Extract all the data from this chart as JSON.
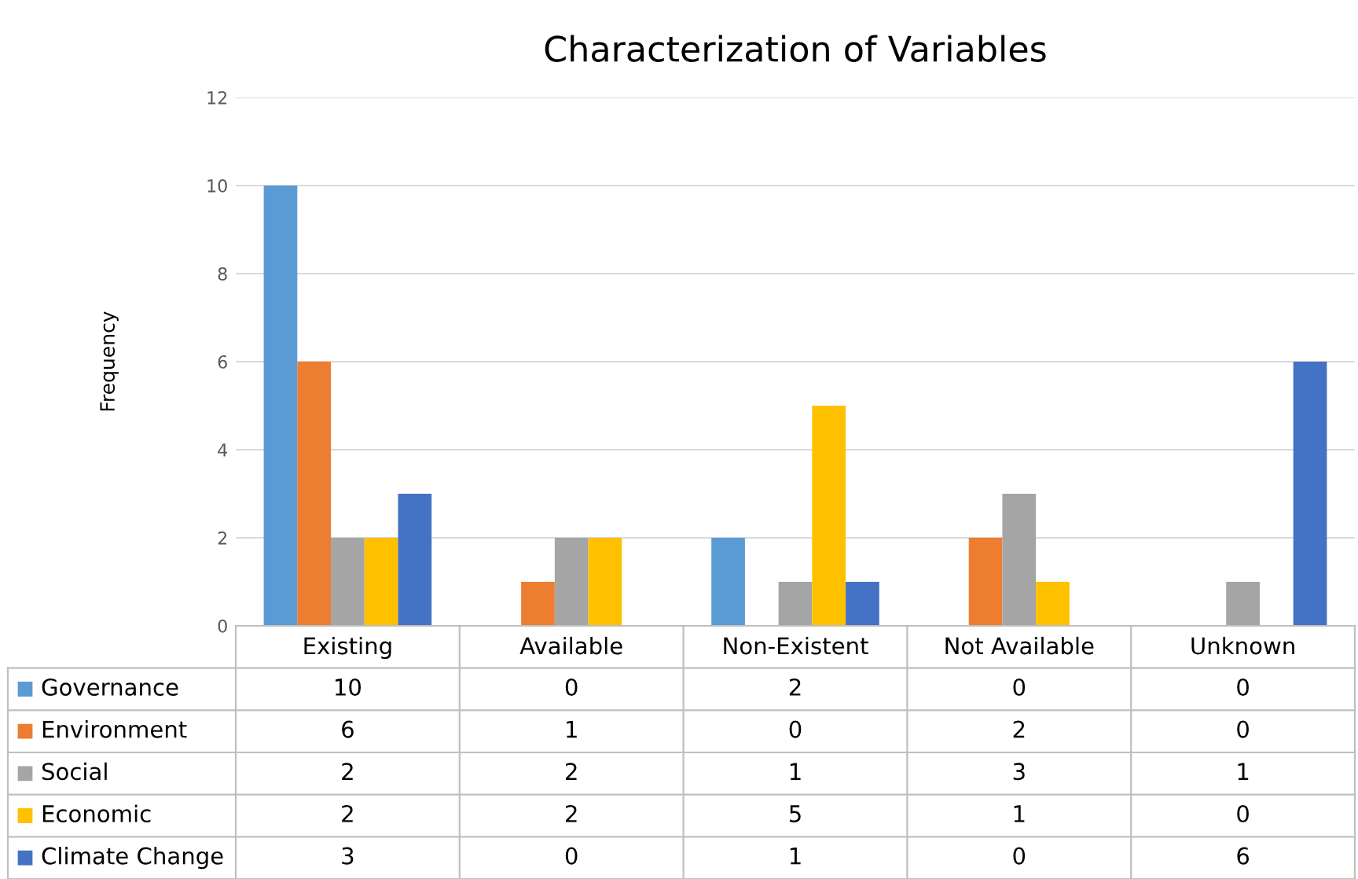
{
  "chart_data": {
    "type": "bar",
    "title": "Characterization of Variables",
    "ylabel": "Frequency",
    "categories": [
      "Existing",
      "Available",
      "Non-Existent",
      "Not Available",
      "Unknown"
    ],
    "series": [
      {
        "name": "Governance",
        "color": "#5b9bd5",
        "values": [
          10,
          0,
          2,
          0,
          0
        ]
      },
      {
        "name": "Environment",
        "color": "#ed7d31",
        "values": [
          6,
          1,
          0,
          2,
          0
        ]
      },
      {
        "name": "Social",
        "color": "#a5a5a5",
        "values": [
          2,
          2,
          1,
          3,
          1
        ]
      },
      {
        "name": "Economic",
        "color": "#ffc000",
        "values": [
          2,
          2,
          5,
          1,
          0
        ]
      },
      {
        "name": "Climate Change",
        "color": "#4472c4",
        "values": [
          3,
          0,
          1,
          0,
          6
        ]
      }
    ],
    "ylim": [
      0,
      12
    ],
    "yticks": [
      0,
      2,
      4,
      6,
      8,
      10,
      12
    ],
    "grid": "y",
    "legend": "bottom",
    "data_labels": true
  }
}
